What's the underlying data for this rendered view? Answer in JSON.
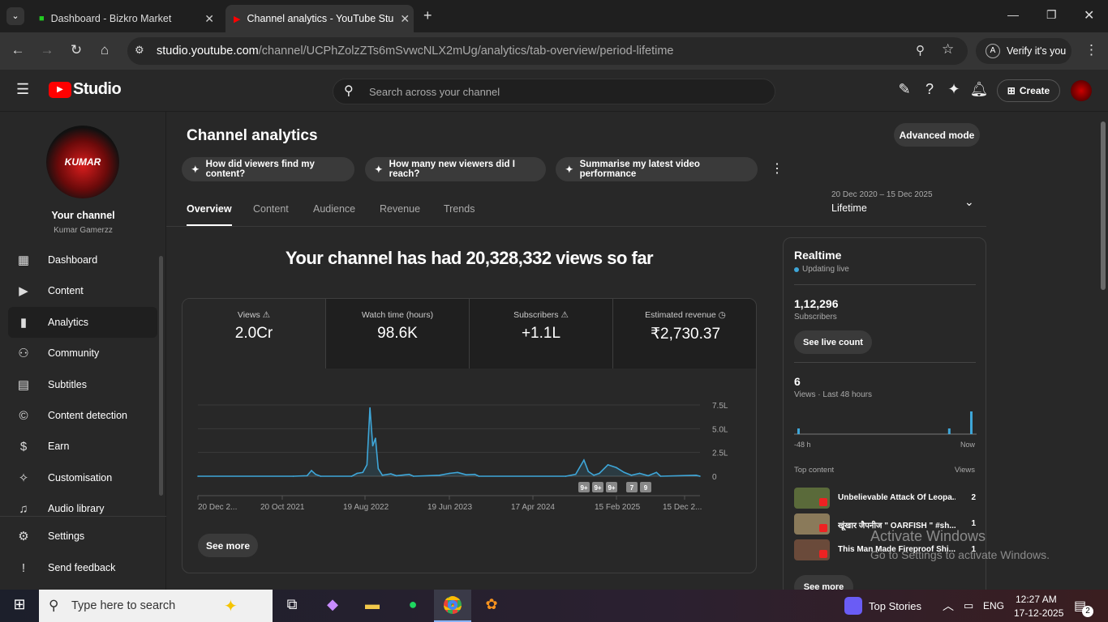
{
  "browser": {
    "tabs": [
      {
        "title": "Dashboard - Bizkro Market"
      },
      {
        "title": "Channel analytics - YouTube Stu"
      }
    ],
    "url_host": "studio.youtube.com",
    "url_path": "/channel/UCPhZolzZTs6mSvwcNLX2mUg/analytics/tab-overview/period-lifetime",
    "verify_label": "Verify it's you",
    "verify_initial": "A"
  },
  "header": {
    "logo": "Studio",
    "search_placeholder": "Search across your channel",
    "create_label": "Create"
  },
  "sidebar": {
    "avatar_text": "KUMAR",
    "channel_label": "Your channel",
    "channel_name": "Kumar Gamerzz",
    "items": [
      {
        "label": "Dashboard",
        "icon": "dashboard-icon"
      },
      {
        "label": "Content",
        "icon": "content-icon"
      },
      {
        "label": "Analytics",
        "icon": "analytics-icon",
        "selected": true
      },
      {
        "label": "Community",
        "icon": "community-icon"
      },
      {
        "label": "Subtitles",
        "icon": "subtitles-icon"
      },
      {
        "label": "Content detection",
        "icon": "copyright-icon"
      },
      {
        "label": "Earn",
        "icon": "dollar-icon"
      },
      {
        "label": "Customisation",
        "icon": "magic-wand-icon"
      },
      {
        "label": "Audio library",
        "icon": "audio-library-icon"
      }
    ],
    "bottom": [
      {
        "label": "Settings",
        "icon": "gear-icon"
      },
      {
        "label": "Send feedback",
        "icon": "feedback-icon"
      }
    ]
  },
  "page": {
    "title": "Channel analytics",
    "advanced_mode": "Advanced mode",
    "chips": [
      "How did viewers find my content?",
      "How many new viewers did I reach?",
      "Summarise my latest video performance"
    ],
    "tabs": [
      "Overview",
      "Content",
      "Audience",
      "Revenue",
      "Trends"
    ],
    "date_range": "20 Dec 2020 – 15 Dec 2025",
    "period": "Lifetime",
    "headline": "Your channel has had 20,328,332 views so far",
    "metrics": [
      {
        "label": "Views",
        "value": "2.0Cr",
        "icon": "warning-icon"
      },
      {
        "label": "Watch time (hours)",
        "value": "98.6K"
      },
      {
        "label": "Subscribers",
        "value": "+1.1L",
        "icon": "warning-icon"
      },
      {
        "label": "Estimated revenue",
        "value": "₹2,730.37",
        "icon": "clock-icon"
      }
    ],
    "see_more": "See more",
    "markers": [
      "9+",
      "9+",
      "9+",
      "7",
      "9"
    ]
  },
  "chart_data": {
    "type": "line",
    "ylabel": "",
    "xlabel": "",
    "ylim": [
      0,
      7.5
    ],
    "y_unit": "L",
    "yticks": [
      "0",
      "2.5L",
      "5.0L",
      "7.5L"
    ],
    "xticks": [
      "20 Dec 2...",
      "20 Oct 2021",
      "19 Aug 2022",
      "19 Jun 2023",
      "17 Apr 2024",
      "15 Feb 2025",
      "15 Dec 2..."
    ],
    "grid": true,
    "color": "#3ea6d8",
    "points": [
      [
        "2020-12-20",
        0
      ],
      [
        "2021-12-01",
        0
      ],
      [
        "2022-01-20",
        0.05
      ],
      [
        "2022-02-05",
        0.6
      ],
      [
        "2022-02-20",
        0.2
      ],
      [
        "2022-03-10",
        0
      ],
      [
        "2022-07-01",
        0
      ],
      [
        "2022-07-20",
        0.3
      ],
      [
        "2022-08-10",
        0.4
      ],
      [
        "2022-08-25",
        1.2
      ],
      [
        "2022-09-05",
        7.2
      ],
      [
        "2022-09-15",
        3.2
      ],
      [
        "2022-09-25",
        4.0
      ],
      [
        "2022-10-05",
        0.8
      ],
      [
        "2022-10-20",
        0.1
      ],
      [
        "2022-11-20",
        0.25
      ],
      [
        "2022-12-10",
        0.05
      ],
      [
        "2023-01-25",
        0.2
      ],
      [
        "2023-02-10",
        0
      ],
      [
        "2023-05-15",
        0.1
      ],
      [
        "2023-06-20",
        0.3
      ],
      [
        "2023-07-20",
        0.4
      ],
      [
        "2023-08-20",
        0.15
      ],
      [
        "2023-09-20",
        0.2
      ],
      [
        "2023-10-05",
        0
      ],
      [
        "2024-08-15",
        0
      ],
      [
        "2024-09-20",
        0.2
      ],
      [
        "2024-10-20",
        1.7
      ],
      [
        "2024-11-05",
        0.5
      ],
      [
        "2024-11-25",
        0.1
      ],
      [
        "2024-12-15",
        0.3
      ],
      [
        "2025-01-15",
        1.2
      ],
      [
        "2025-02-15",
        0.9
      ],
      [
        "2025-03-15",
        0.4
      ],
      [
        "2025-04-10",
        0.1
      ],
      [
        "2025-05-10",
        0.3
      ],
      [
        "2025-06-10",
        0.05
      ],
      [
        "2025-07-10",
        0.4
      ],
      [
        "2025-07-25",
        0
      ],
      [
        "2025-12-01",
        0.1
      ],
      [
        "2025-12-15",
        0
      ]
    ]
  },
  "realtime": {
    "title": "Realtime",
    "status": "Updating live",
    "subscribers": "1,12,296",
    "subscribers_label": "Subscribers",
    "live_count": "See live count",
    "views": "6",
    "views_label": "Views · Last 48 hours",
    "axis_start": "-48 h",
    "axis_end": "Now",
    "bars": [
      1,
      0,
      0,
      0,
      0,
      0,
      0,
      0,
      0,
      0,
      0,
      0,
      0,
      0,
      0,
      0,
      0,
      0,
      0,
      0,
      0,
      0,
      0,
      0,
      0,
      0,
      0,
      0,
      0,
      0,
      0,
      0,
      0,
      0,
      0,
      0,
      0,
      0,
      0,
      0,
      0,
      1,
      0,
      0,
      0,
      0,
      0,
      4
    ],
    "top_content_label": "Top content",
    "views_col": "Views",
    "top": [
      {
        "title": "Unbelievable Attack Of Leopa...",
        "views": "2"
      },
      {
        "title": "खूंखार जैपनीज \" OARFISH \" #sh...",
        "views": "1"
      },
      {
        "title": "This Man Made Fireproof Shi...",
        "views": "1"
      }
    ],
    "see_more": "See more"
  },
  "watermark": {
    "line1": "Activate Windows",
    "line2": "Go to Settings to activate Windows."
  },
  "taskbar": {
    "search_placeholder": "Type here to search",
    "news": "Top Stories",
    "lang": "ENG",
    "time": "12:27 AM",
    "date": "17-12-2025",
    "notif_count": "2"
  }
}
